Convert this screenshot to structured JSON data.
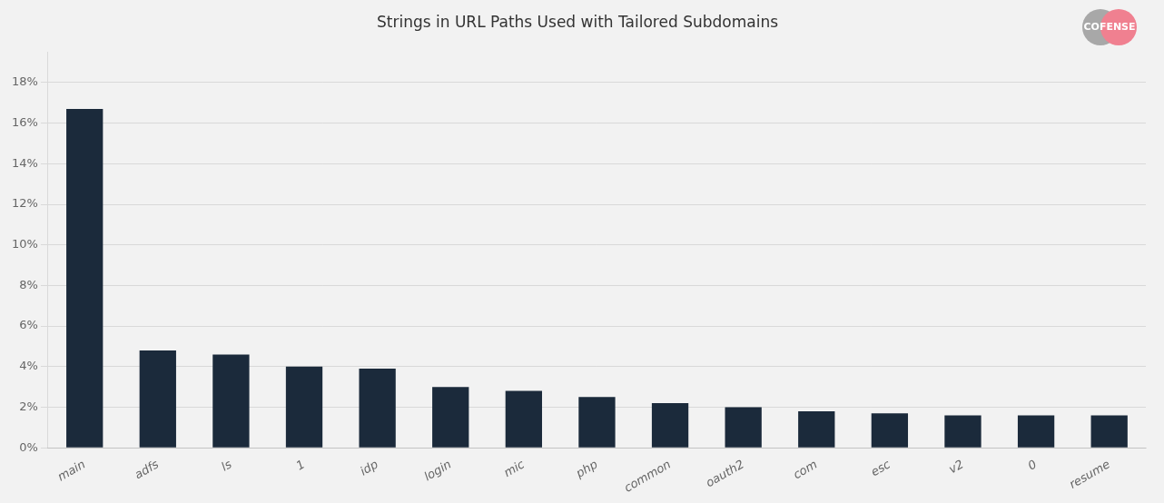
{
  "chart_data": {
    "type": "bar",
    "title": "Strings in URL Paths Used with Tailored Subdomains",
    "categories": [
      "main",
      "adfs",
      "ls",
      "1",
      "idp",
      "login",
      "mic",
      "php",
      "common",
      "oauth2",
      "com",
      "esc",
      "v2",
      "0",
      "resume"
    ],
    "values": [
      0.167,
      0.048,
      0.046,
      0.04,
      0.039,
      0.03,
      0.028,
      0.025,
      0.022,
      0.02,
      0.018,
      0.017,
      0.016,
      0.016,
      0.016
    ],
    "color": "#1b2a3b",
    "ylim": [
      0,
      0.195
    ],
    "yticks": [
      {
        "value": 0.0,
        "label": "0%"
      },
      {
        "value": 0.02,
        "label": "2%"
      },
      {
        "value": 0.04,
        "label": "4%"
      },
      {
        "value": 0.06,
        "label": "6%"
      },
      {
        "value": 0.08,
        "label": "8%"
      },
      {
        "value": 0.1,
        "label": "10%"
      },
      {
        "value": 0.12,
        "label": "12%"
      },
      {
        "value": 0.14,
        "label": "14%"
      },
      {
        "value": 0.16,
        "label": "16%"
      },
      {
        "value": 0.18,
        "label": "18%"
      }
    ],
    "grid": true,
    "annotations": [
      {
        "text": "COFENSE"
      }
    ]
  }
}
